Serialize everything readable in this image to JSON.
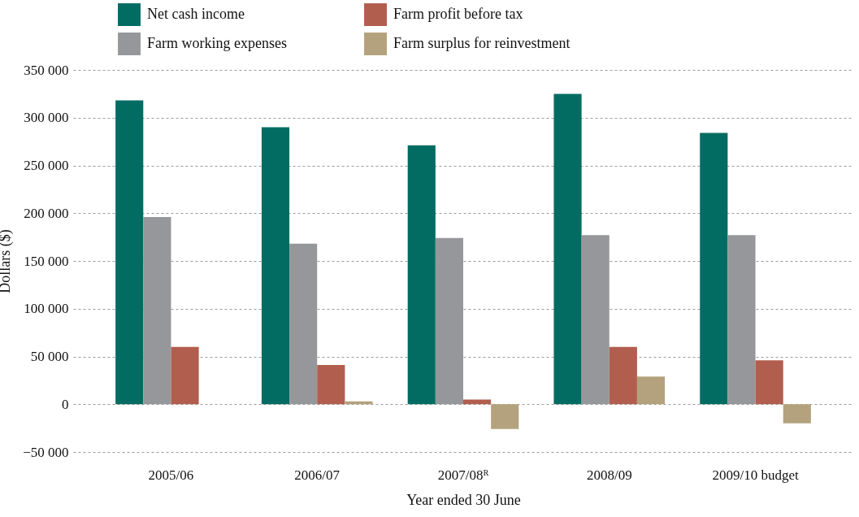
{
  "chart_data": {
    "type": "bar",
    "xlabel": "Year ended 30 June",
    "ylabel": "Dollars ($)",
    "categories": [
      "2005/06",
      "2006/07",
      "2007/08ᴿ",
      "2008/09",
      "2009/10 budget"
    ],
    "series": [
      {
        "name": "Net cash income",
        "color": "#026c62",
        "values": [
          318000,
          290000,
          271000,
          325000,
          284000
        ]
      },
      {
        "name": "Farm working expenses",
        "color": "#96979a",
        "values": [
          196000,
          168000,
          174000,
          177000,
          177000
        ]
      },
      {
        "name": "Farm profit before tax",
        "color": "#b25e4e",
        "values": [
          60000,
          41000,
          5000,
          60000,
          46000
        ]
      },
      {
        "name": "Farm surplus for reinvestment",
        "color": "#b3a27d",
        "values": [
          null,
          3000,
          -26000,
          29000,
          -20000
        ]
      }
    ],
    "ylim": [
      -50000,
      350000
    ],
    "yticks": [
      {
        "value": -50000,
        "label": "−50 000"
      },
      {
        "value": 0,
        "label": "0"
      },
      {
        "value": 50000,
        "label": "50 000"
      },
      {
        "value": 100000,
        "label": "100 000"
      },
      {
        "value": 150000,
        "label": "150 000"
      },
      {
        "value": 200000,
        "label": "200 000"
      },
      {
        "value": 250000,
        "label": "250 000"
      },
      {
        "value": 300000,
        "label": "300 000"
      },
      {
        "value": 350000,
        "label": "350 000"
      }
    ],
    "grid": "y",
    "legend": "top"
  }
}
